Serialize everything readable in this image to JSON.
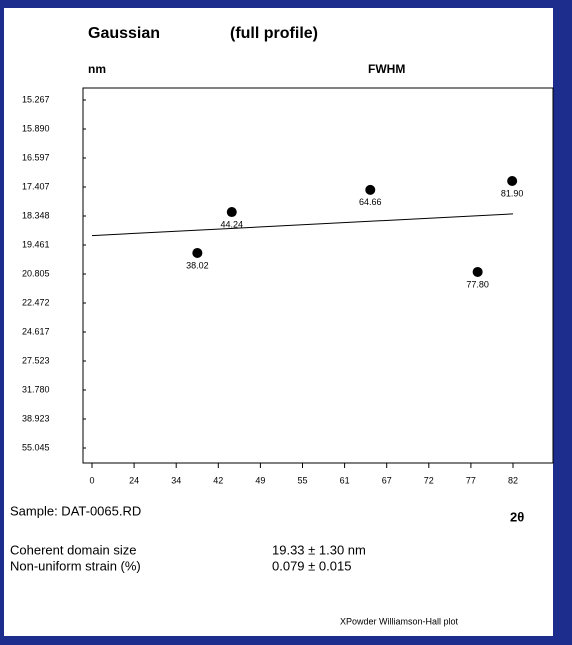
{
  "chart_data": {
    "type": "scatter",
    "title": "Gaussian",
    "subtitle": "(full profile)",
    "y_label": "nm",
    "y_label_right": "FWHM",
    "x_label": "2θ",
    "sample": "Sample: DAT-0065.RD",
    "stats": [
      {
        "label": "Coherent domain size",
        "value": "19.33 ± 1.30 nm"
      },
      {
        "label": "Non-uniform strain (%)",
        "value": "0.079 ± 0.015"
      }
    ],
    "footer": "XPowder Williamson-Hall plot",
    "x": [
      38.02,
      44.24,
      64.66,
      77.8,
      81.9
    ],
    "value_labels": [
      "38.02",
      "44.24",
      "64.66",
      "77.80",
      "81.90"
    ],
    "values": [
      19.83,
      18.22,
      17.5,
      20.71,
      17.24
    ],
    "color": "#000000",
    "fit_line": {
      "x": [
        0,
        82
      ],
      "values": [
        19.1,
        18.28
      ]
    },
    "xlim": [
      0,
      82
    ],
    "xticks": [
      0,
      24,
      34,
      42,
      49,
      55,
      61,
      67,
      72,
      77,
      82
    ],
    "ylim": [
      15.267,
      55.045
    ],
    "yticks": [
      15.267,
      {
        "value": 15.89,
        "label": "15.890"
      },
      16.597,
      17.407,
      18.348,
      19.461,
      20.805,
      22.472,
      24.617,
      27.523,
      {
        "value": 31.78,
        "label": "31.780"
      },
      38.923,
      55.045
    ]
  }
}
